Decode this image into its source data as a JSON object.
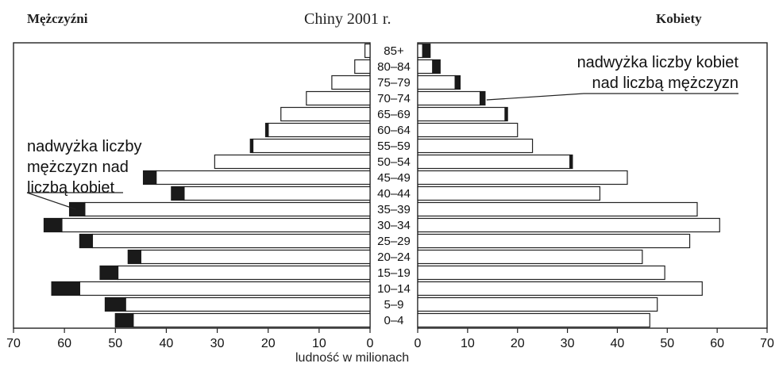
{
  "chart_data": {
    "type": "bar",
    "title": "Chiny 2001 r.",
    "left_label": "Mężczyźni",
    "right_label": "Kobiety",
    "xlabel": "ludność w milionach",
    "xlim": [
      0,
      70
    ],
    "x_ticks": [
      "70",
      "60",
      "50",
      "40",
      "30",
      "20",
      "10",
      "0",
      "0",
      "10",
      "20",
      "30",
      "40",
      "50",
      "60",
      "70"
    ],
    "categories": [
      "85+",
      "80–84",
      "75–79",
      "70–74",
      "65–69",
      "60–64",
      "55–59",
      "50–54",
      "45–49",
      "40–44",
      "35–39",
      "30–34",
      "25–29",
      "20–24",
      "15–19",
      "10–14",
      "5–9",
      "0–4"
    ],
    "series": [
      {
        "name": "Mężczyźni",
        "values": [
          1,
          3,
          7.5,
          12.5,
          17.5,
          20.5,
          23.5,
          30.5,
          44.5,
          39,
          59,
          64,
          57,
          47.5,
          53,
          62.5,
          52,
          50
        ]
      },
      {
        "name": "Kobiety",
        "values": [
          2.5,
          4.5,
          8.5,
          13.5,
          18,
          20,
          23,
          31,
          42,
          36.5,
          56,
          60.5,
          54.5,
          45,
          49.5,
          57,
          48,
          46.5
        ]
      }
    ],
    "annotations": {
      "female_surplus": [
        "nadwyżka liczby kobiet",
        "nad liczbą mężczyzn"
      ],
      "male_surplus": [
        "nadwyżka liczby",
        "mężczyzn nad",
        "liczbą kobiet"
      ]
    }
  }
}
